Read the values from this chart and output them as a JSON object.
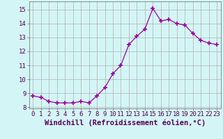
{
  "x": [
    0,
    1,
    2,
    3,
    4,
    5,
    6,
    7,
    8,
    9,
    10,
    11,
    12,
    13,
    14,
    15,
    16,
    17,
    18,
    19,
    20,
    21,
    22,
    23
  ],
  "y": [
    8.8,
    8.7,
    8.4,
    8.3,
    8.3,
    8.3,
    8.4,
    8.3,
    8.8,
    9.4,
    10.4,
    11.0,
    12.5,
    13.1,
    13.6,
    15.1,
    14.2,
    14.3,
    14.0,
    13.9,
    13.3,
    12.8,
    12.6,
    12.5
  ],
  "line_color": "#990099",
  "marker": "+",
  "marker_size": 4,
  "marker_linewidth": 1.2,
  "line_width": 0.9,
  "background_color": "#d4f5f5",
  "grid_color": "#b0b0b0",
  "xlabel": "Windchill (Refroidissement éolien,°C)",
  "xlabel_fontsize": 7.5,
  "tick_fontsize": 6.5,
  "ylim": [
    7.9,
    15.6
  ],
  "yticks": [
    8,
    9,
    10,
    11,
    12,
    13,
    14,
    15
  ],
  "xlim": [
    -0.5,
    23.5
  ],
  "xticks": [
    0,
    1,
    2,
    3,
    4,
    5,
    6,
    7,
    8,
    9,
    10,
    11,
    12,
    13,
    14,
    15,
    16,
    17,
    18,
    19,
    20,
    21,
    22,
    23
  ]
}
